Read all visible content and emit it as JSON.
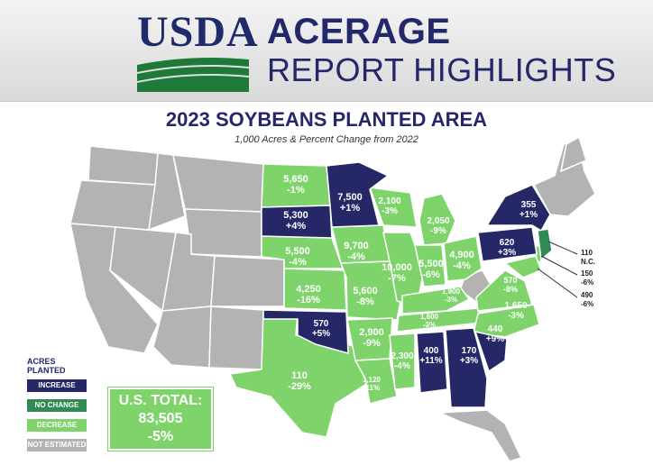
{
  "header": {
    "logo_text": "USDA",
    "title": "ACERAGE",
    "subtitle": "REPORT HIGHLIGHTS"
  },
  "map": {
    "title": "2023 SOYBEANS PLANTED AREA",
    "subtitle": "1,000 Acres & Percent Change from 2022",
    "colors": {
      "increase": "#262766",
      "no_change": "#2f8a54",
      "decrease": "#7ed46a",
      "not_estimated": "#b3b3b3"
    },
    "states": [
      {
        "name": "North Dakota",
        "value": "5,650",
        "change": "-1%",
        "status": "decrease"
      },
      {
        "name": "Minnesota",
        "value": "7,500",
        "change": "+1%",
        "status": "increase"
      },
      {
        "name": "South Dakota",
        "value": "5,300",
        "change": "+4%",
        "status": "increase"
      },
      {
        "name": "Wisconsin",
        "value": "2,100",
        "change": "-3%",
        "status": "decrease"
      },
      {
        "name": "Michigan",
        "value": "2,050",
        "change": "-9%",
        "status": "decrease"
      },
      {
        "name": "New York",
        "value": "355",
        "change": "+1%",
        "status": "increase"
      },
      {
        "name": "Pennsylvania",
        "value": "620",
        "change": "+3%",
        "status": "increase"
      },
      {
        "name": "Nebraska",
        "value": "5,500",
        "change": "-4%",
        "status": "decrease"
      },
      {
        "name": "Iowa",
        "value": "9,700",
        "change": "-4%",
        "status": "decrease"
      },
      {
        "name": "Illinois",
        "value": "10,000",
        "change": "-7%",
        "status": "decrease"
      },
      {
        "name": "Indiana",
        "value": "5,500",
        "change": "-6%",
        "status": "decrease"
      },
      {
        "name": "Ohio",
        "value": "4,900",
        "change": "-4%",
        "status": "decrease"
      },
      {
        "name": "Kansas",
        "value": "4,250",
        "change": "-16%",
        "status": "decrease"
      },
      {
        "name": "Missouri",
        "value": "5,600",
        "change": "-8%",
        "status": "decrease"
      },
      {
        "name": "Kentucky",
        "value": "1,900",
        "change": "-3%",
        "status": "decrease"
      },
      {
        "name": "Virginia",
        "value": "570",
        "change": "-8%",
        "status": "decrease"
      },
      {
        "name": "Tennessee",
        "value": "1,600",
        "change": "-3%",
        "status": "decrease"
      },
      {
        "name": "North Carolina",
        "value": "1,650",
        "change": "-3%",
        "status": "decrease"
      },
      {
        "name": "Oklahoma",
        "value": "570",
        "change": "+5%",
        "status": "increase"
      },
      {
        "name": "Arkansas",
        "value": "2,900",
        "change": "-9%",
        "status": "decrease"
      },
      {
        "name": "South Carolina",
        "value": "440",
        "change": "+9%",
        "status": "increase"
      },
      {
        "name": "Texas",
        "value": "110",
        "change": "-29%",
        "status": "decrease"
      },
      {
        "name": "Mississippi",
        "value": "2,300",
        "change": "-4%",
        "status": "decrease"
      },
      {
        "name": "Alabama",
        "value": "400",
        "change": "+11%",
        "status": "increase"
      },
      {
        "name": "Georgia",
        "value": "170",
        "change": "+3%",
        "status": "increase"
      },
      {
        "name": "Louisiana",
        "value": "1,120",
        "change": "-11%",
        "status": "decrease"
      }
    ],
    "callouts": [
      {
        "name": "New Jersey",
        "value": "110",
        "change": "N.C."
      },
      {
        "name": "Delaware",
        "value": "150",
        "change": "-6%"
      },
      {
        "name": "Maryland",
        "value": "490",
        "change": "-6%"
      }
    ]
  },
  "legend": {
    "title": "ACRES PLANTED",
    "items": [
      "INCREASE",
      "NO CHANGE",
      "DECREASE",
      "NOT ESTIMATED"
    ]
  },
  "total": {
    "label": "U.S. TOTAL:",
    "value": "83,505",
    "change": "-5%"
  }
}
